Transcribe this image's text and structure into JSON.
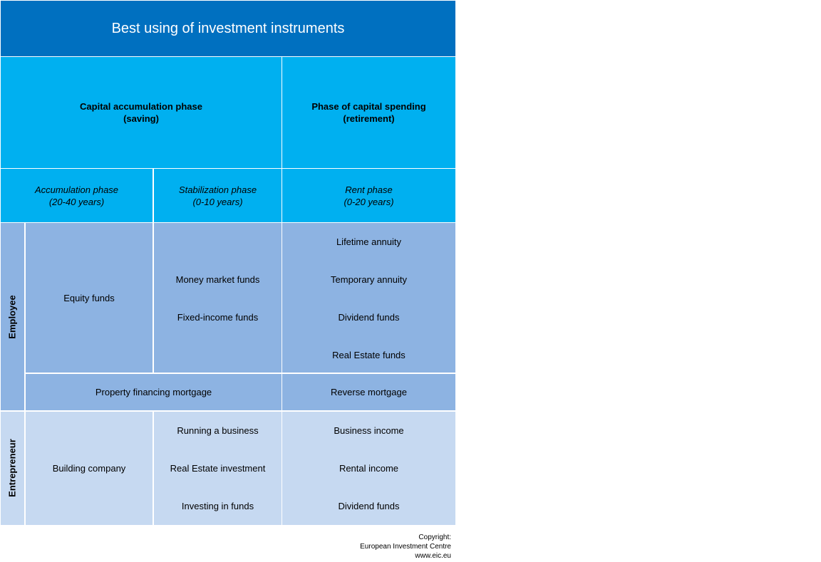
{
  "title": "Best using of investment instruments",
  "headers": {
    "saving_phase": [
      "Capital accumulation phase",
      "(saving)"
    ],
    "spending_phase": [
      "Phase of capital spending",
      "(retirement)"
    ],
    "accumulation": [
      "Accumulation phase",
      "(20-40 years)"
    ],
    "stabilization": [
      "Stabilization phase",
      "(0-10 years)"
    ],
    "rent": [
      "Rent phase",
      "(0-20 years)"
    ]
  },
  "employee": {
    "label": "Employee",
    "accumulation": "Equity funds",
    "stabilization": [
      "Money market funds",
      "Fixed-income funds"
    ],
    "rent": [
      "Lifetime annuity",
      "Temporary annuity",
      "Dividend funds",
      "Real Estate funds"
    ],
    "mortgage_saving": "Property financing mortgage",
    "mortgage_spending": "Reverse mortgage"
  },
  "entrepreneur": {
    "label": "Entrepreneur",
    "accumulation": "Building company",
    "stabilization": [
      "Running a business",
      "Real Estate investment",
      "Investing in funds"
    ],
    "rent": [
      "Business income",
      "Rental income",
      "Dividend funds"
    ]
  },
  "copyright": [
    "Copyright:",
    "European Investment Centre",
    "www.eic.eu"
  ],
  "colors": {
    "title_bg": "#0070c0",
    "header_bg": "#00b0f0",
    "employee_bg": "#8db3e2",
    "entrepreneur_bg": "#c6d9f1"
  }
}
